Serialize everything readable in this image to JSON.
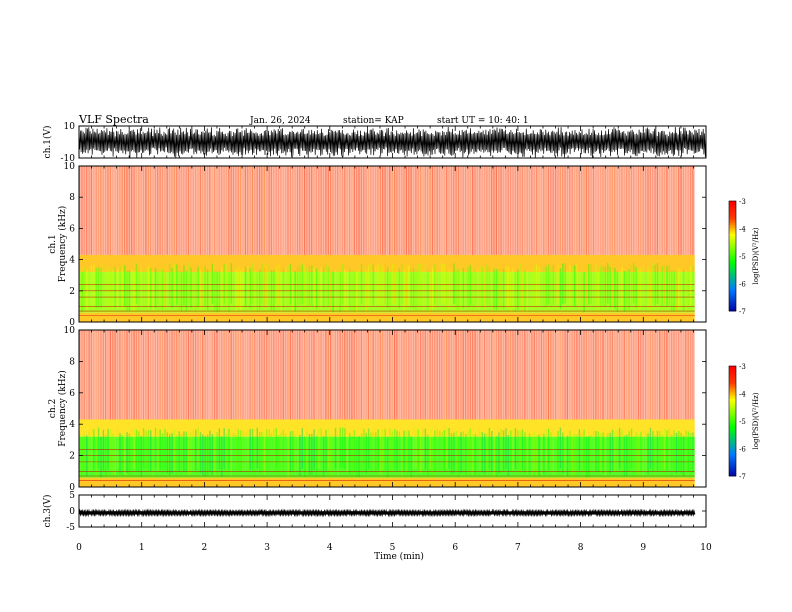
{
  "header": {
    "title": "VLF Spectra",
    "date": "Jan. 26, 2024",
    "station": "station= KAP",
    "start": "start  UT =   10: 40: 1"
  },
  "chart_data": [
    {
      "type": "line",
      "name": "ch1-waveform",
      "ylabel": "ch.1(V)",
      "ylim": [
        -10,
        10
      ],
      "yticks": [
        "10",
        "-10"
      ],
      "xlim": [
        0,
        10
      ]
    },
    {
      "type": "heatmap",
      "name": "ch1-spectrogram",
      "ylabel": "ch.1\nFrequency (kHz)",
      "ylim": [
        0,
        10
      ],
      "yticks": [
        "0",
        "2",
        "4",
        "6",
        "8",
        "10"
      ],
      "xlim": [
        0,
        9.82
      ],
      "colorbar": {
        "label": "log(PSD)(V²/Hz)",
        "range": [
          -7,
          -3
        ],
        "ticks": [
          "-3",
          "-4",
          "-5",
          "-6",
          "-7"
        ]
      },
      "bands": [
        {
          "from_khz": 4.3,
          "to_khz": 10,
          "level": -3.6
        },
        {
          "from_khz": 3.2,
          "to_khz": 4.3,
          "level": -4.0
        },
        {
          "from_khz": 0.6,
          "to_khz": 3.2,
          "level": -4.6
        },
        {
          "from_khz": 0,
          "to_khz": 0.6,
          "level": -4.0
        }
      ]
    },
    {
      "type": "heatmap",
      "name": "ch2-spectrogram",
      "ylabel": "ch.2\nFrequency (kHz)",
      "ylim": [
        0,
        10
      ],
      "yticks": [
        "0",
        "2",
        "4",
        "6",
        "8",
        "10"
      ],
      "xlim": [
        0,
        9.82
      ],
      "colorbar": {
        "label": "log(PSD)(V²/Hz)",
        "range": [
          -7,
          -3
        ],
        "ticks": [
          "-3",
          "-4",
          "-5",
          "-6",
          "-7"
        ]
      },
      "bands": [
        {
          "from_khz": 4.3,
          "to_khz": 10,
          "level": -3.6
        },
        {
          "from_khz": 3.2,
          "to_khz": 4.3,
          "level": -4.1
        },
        {
          "from_khz": 0.6,
          "to_khz": 3.2,
          "level": -5.0
        },
        {
          "from_khz": 0,
          "to_khz": 0.6,
          "level": -4.0
        }
      ]
    },
    {
      "type": "line",
      "name": "ch3-waveform",
      "ylabel": "ch.3(V)",
      "ylim": [
        -5,
        5
      ],
      "yticks": [
        "5",
        "0",
        "-5"
      ],
      "xlim": [
        0,
        10
      ],
      "xlabel": "Time (min)",
      "xticks": [
        "0",
        "1",
        "2",
        "3",
        "4",
        "5",
        "6",
        "7",
        "8",
        "9",
        "10"
      ]
    }
  ],
  "colors": {
    "high": "#ff0000",
    "mid": "#ffff00",
    "low": "#00ff00",
    "lowest": "#0000ff"
  }
}
